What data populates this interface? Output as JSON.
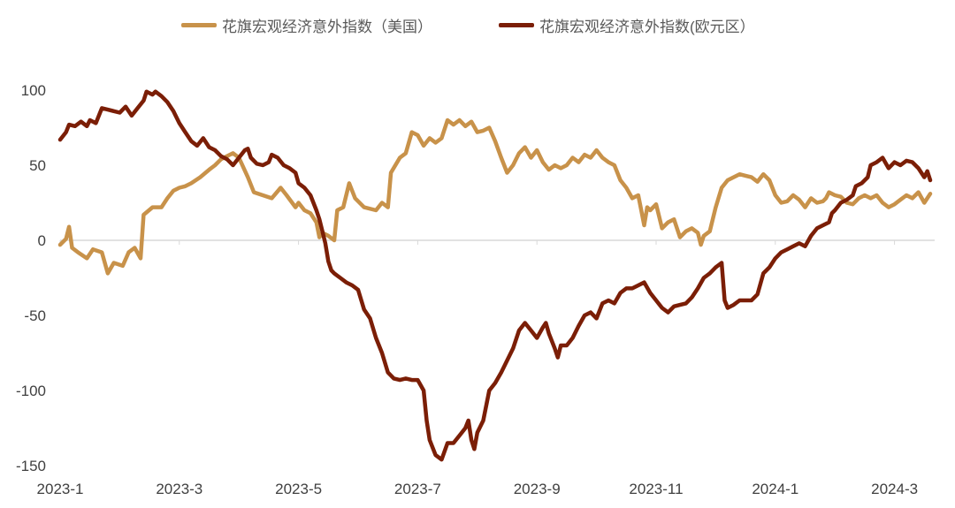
{
  "chart_data": {
    "type": "line",
    "title": "",
    "xlabel": "",
    "ylabel": "",
    "ylim": [
      -150,
      110
    ],
    "yticks": [
      100,
      50,
      0,
      -50,
      -100,
      -150
    ],
    "xlim": [
      0,
      14.6
    ],
    "xtick_positions": [
      0,
      2,
      4,
      6,
      8,
      10,
      12,
      14
    ],
    "xtick_labels": [
      "2023-1",
      "2023-3",
      "2023-5",
      "2023-7",
      "2023-9",
      "2023-11",
      "2024-1",
      "2024-3"
    ],
    "legend_position": "top",
    "series": [
      {
        "name": "花旗宏观经济意外指数（美国）",
        "color": "#C8924A",
        "points": [
          [
            0.0,
            -3
          ],
          [
            0.1,
            1
          ],
          [
            0.15,
            9
          ],
          [
            0.2,
            -5
          ],
          [
            0.3,
            -8
          ],
          [
            0.45,
            -12
          ],
          [
            0.55,
            -6
          ],
          [
            0.7,
            -8
          ],
          [
            0.8,
            -22
          ],
          [
            0.9,
            -15
          ],
          [
            1.05,
            -17
          ],
          [
            1.15,
            -8
          ],
          [
            1.25,
            -5
          ],
          [
            1.35,
            -12
          ],
          [
            1.4,
            17
          ],
          [
            1.55,
            22
          ],
          [
            1.7,
            22
          ],
          [
            1.8,
            28
          ],
          [
            1.9,
            33
          ],
          [
            2.0,
            35
          ],
          [
            2.1,
            36
          ],
          [
            2.2,
            38
          ],
          [
            2.35,
            42
          ],
          [
            2.5,
            47
          ],
          [
            2.6,
            50
          ],
          [
            2.7,
            54
          ],
          [
            2.8,
            56
          ],
          [
            2.9,
            58
          ],
          [
            3.0,
            55
          ],
          [
            3.15,
            42
          ],
          [
            3.25,
            32
          ],
          [
            3.4,
            30
          ],
          [
            3.55,
            28
          ],
          [
            3.7,
            35
          ],
          [
            3.8,
            30
          ],
          [
            3.95,
            22
          ],
          [
            4.0,
            25
          ],
          [
            4.1,
            20
          ],
          [
            4.2,
            18
          ],
          [
            4.3,
            12
          ],
          [
            4.35,
            2
          ],
          [
            4.4,
            5
          ],
          [
            4.5,
            3
          ],
          [
            4.6,
            0
          ],
          [
            4.65,
            20
          ],
          [
            4.75,
            22
          ],
          [
            4.85,
            38
          ],
          [
            4.95,
            28
          ],
          [
            5.1,
            22
          ],
          [
            5.3,
            20
          ],
          [
            5.4,
            25
          ],
          [
            5.5,
            22
          ],
          [
            5.55,
            45
          ],
          [
            5.7,
            55
          ],
          [
            5.8,
            58
          ],
          [
            5.9,
            72
          ],
          [
            6.0,
            70
          ],
          [
            6.1,
            63
          ],
          [
            6.2,
            68
          ],
          [
            6.3,
            65
          ],
          [
            6.4,
            68
          ],
          [
            6.5,
            80
          ],
          [
            6.6,
            77
          ],
          [
            6.7,
            80
          ],
          [
            6.8,
            76
          ],
          [
            6.9,
            79
          ],
          [
            7.0,
            72
          ],
          [
            7.1,
            73
          ],
          [
            7.2,
            75
          ],
          [
            7.3,
            66
          ],
          [
            7.4,
            55
          ],
          [
            7.5,
            45
          ],
          [
            7.6,
            50
          ],
          [
            7.7,
            58
          ],
          [
            7.8,
            62
          ],
          [
            7.9,
            55
          ],
          [
            8.0,
            60
          ],
          [
            8.1,
            52
          ],
          [
            8.2,
            47
          ],
          [
            8.3,
            50
          ],
          [
            8.4,
            48
          ],
          [
            8.5,
            50
          ],
          [
            8.6,
            55
          ],
          [
            8.7,
            52
          ],
          [
            8.8,
            57
          ],
          [
            8.9,
            55
          ],
          [
            9.0,
            60
          ],
          [
            9.1,
            55
          ],
          [
            9.2,
            52
          ],
          [
            9.3,
            50
          ],
          [
            9.4,
            40
          ],
          [
            9.5,
            35
          ],
          [
            9.6,
            28
          ],
          [
            9.7,
            30
          ],
          [
            9.75,
            20
          ],
          [
            9.8,
            10
          ],
          [
            9.85,
            22
          ],
          [
            9.9,
            20
          ],
          [
            10.0,
            24
          ],
          [
            10.1,
            8
          ],
          [
            10.2,
            12
          ],
          [
            10.3,
            14
          ],
          [
            10.4,
            2
          ],
          [
            10.5,
            6
          ],
          [
            10.6,
            8
          ],
          [
            10.7,
            5
          ],
          [
            10.75,
            -3
          ],
          [
            10.8,
            3
          ],
          [
            10.9,
            6
          ],
          [
            11.0,
            22
          ],
          [
            11.1,
            35
          ],
          [
            11.2,
            40
          ],
          [
            11.3,
            42
          ],
          [
            11.4,
            44
          ],
          [
            11.5,
            43
          ],
          [
            11.6,
            42
          ],
          [
            11.7,
            39
          ],
          [
            11.8,
            44
          ],
          [
            11.9,
            40
          ],
          [
            12.0,
            30
          ],
          [
            12.1,
            25
          ],
          [
            12.2,
            26
          ],
          [
            12.3,
            30
          ],
          [
            12.4,
            27
          ],
          [
            12.5,
            22
          ],
          [
            12.6,
            28
          ],
          [
            12.7,
            25
          ],
          [
            12.8,
            26
          ],
          [
            12.85,
            28
          ],
          [
            12.9,
            32
          ],
          [
            13.0,
            30
          ],
          [
            13.1,
            29
          ],
          [
            13.2,
            25
          ],
          [
            13.3,
            24
          ],
          [
            13.4,
            28
          ],
          [
            13.5,
            30
          ],
          [
            13.6,
            28
          ],
          [
            13.7,
            30
          ],
          [
            13.8,
            25
          ],
          [
            13.9,
            22
          ],
          [
            14.0,
            24
          ],
          [
            14.1,
            27
          ],
          [
            14.2,
            30
          ],
          [
            14.3,
            28
          ],
          [
            14.4,
            32
          ],
          [
            14.5,
            25
          ],
          [
            14.6,
            31
          ]
        ]
      },
      {
        "name": "花旗宏观经济意外指数(欧元区）",
        "color": "#7B1E06",
        "points": [
          [
            0.0,
            67
          ],
          [
            0.1,
            72
          ],
          [
            0.15,
            77
          ],
          [
            0.25,
            76
          ],
          [
            0.35,
            79
          ],
          [
            0.45,
            76
          ],
          [
            0.5,
            80
          ],
          [
            0.6,
            78
          ],
          [
            0.7,
            88
          ],
          [
            0.8,
            87
          ],
          [
            0.9,
            86
          ],
          [
            1.0,
            85
          ],
          [
            1.1,
            89
          ],
          [
            1.2,
            83
          ],
          [
            1.3,
            88
          ],
          [
            1.4,
            93
          ],
          [
            1.45,
            99
          ],
          [
            1.55,
            97
          ],
          [
            1.6,
            99
          ],
          [
            1.7,
            96
          ],
          [
            1.8,
            92
          ],
          [
            1.9,
            86
          ],
          [
            2.0,
            78
          ],
          [
            2.1,
            72
          ],
          [
            2.2,
            66
          ],
          [
            2.3,
            63
          ],
          [
            2.4,
            68
          ],
          [
            2.5,
            62
          ],
          [
            2.6,
            60
          ],
          [
            2.7,
            56
          ],
          [
            2.8,
            54
          ],
          [
            2.9,
            50
          ],
          [
            3.0,
            55
          ],
          [
            3.1,
            60
          ],
          [
            3.15,
            61
          ],
          [
            3.2,
            55
          ],
          [
            3.3,
            51
          ],
          [
            3.4,
            50
          ],
          [
            3.5,
            52
          ],
          [
            3.55,
            57
          ],
          [
            3.65,
            55
          ],
          [
            3.75,
            50
          ],
          [
            3.85,
            48
          ],
          [
            3.95,
            45
          ],
          [
            4.0,
            38
          ],
          [
            4.1,
            35
          ],
          [
            4.2,
            30
          ],
          [
            4.3,
            20
          ],
          [
            4.35,
            14
          ],
          [
            4.4,
            6
          ],
          [
            4.45,
            -2
          ],
          [
            4.5,
            -14
          ],
          [
            4.55,
            -20
          ],
          [
            4.6,
            -22
          ],
          [
            4.7,
            -25
          ],
          [
            4.8,
            -28
          ],
          [
            4.9,
            -30
          ],
          [
            5.0,
            -33
          ],
          [
            5.1,
            -46
          ],
          [
            5.2,
            -52
          ],
          [
            5.3,
            -65
          ],
          [
            5.4,
            -75
          ],
          [
            5.5,
            -88
          ],
          [
            5.6,
            -92
          ],
          [
            5.7,
            -93
          ],
          [
            5.8,
            -92
          ],
          [
            5.9,
            -93
          ],
          [
            6.0,
            -93
          ],
          [
            6.1,
            -100
          ],
          [
            6.15,
            -120
          ],
          [
            6.2,
            -133
          ],
          [
            6.3,
            -143
          ],
          [
            6.4,
            -146
          ],
          [
            6.5,
            -135
          ],
          [
            6.6,
            -135
          ],
          [
            6.7,
            -130
          ],
          [
            6.8,
            -125
          ],
          [
            6.85,
            -120
          ],
          [
            6.9,
            -133
          ],
          [
            6.95,
            -139
          ],
          [
            7.0,
            -128
          ],
          [
            7.1,
            -120
          ],
          [
            7.2,
            -100
          ],
          [
            7.3,
            -95
          ],
          [
            7.4,
            -88
          ],
          [
            7.5,
            -80
          ],
          [
            7.6,
            -72
          ],
          [
            7.7,
            -60
          ],
          [
            7.8,
            -55
          ],
          [
            7.9,
            -60
          ],
          [
            8.0,
            -65
          ],
          [
            8.1,
            -58
          ],
          [
            8.15,
            -55
          ],
          [
            8.2,
            -62
          ],
          [
            8.3,
            -72
          ],
          [
            8.35,
            -78
          ],
          [
            8.4,
            -70
          ],
          [
            8.5,
            -70
          ],
          [
            8.6,
            -65
          ],
          [
            8.7,
            -57
          ],
          [
            8.8,
            -50
          ],
          [
            8.9,
            -48
          ],
          [
            9.0,
            -52
          ],
          [
            9.1,
            -42
          ],
          [
            9.2,
            -40
          ],
          [
            9.3,
            -42
          ],
          [
            9.4,
            -35
          ],
          [
            9.5,
            -32
          ],
          [
            9.6,
            -32
          ],
          [
            9.7,
            -30
          ],
          [
            9.8,
            -28
          ],
          [
            9.9,
            -35
          ],
          [
            10.0,
            -40
          ],
          [
            10.1,
            -45
          ],
          [
            10.2,
            -48
          ],
          [
            10.3,
            -44
          ],
          [
            10.4,
            -43
          ],
          [
            10.5,
            -42
          ],
          [
            10.6,
            -38
          ],
          [
            10.7,
            -32
          ],
          [
            10.8,
            -25
          ],
          [
            10.9,
            -22
          ],
          [
            11.0,
            -18
          ],
          [
            11.1,
            -15
          ],
          [
            11.15,
            -40
          ],
          [
            11.2,
            -45
          ],
          [
            11.3,
            -43
          ],
          [
            11.4,
            -40
          ],
          [
            11.5,
            -40
          ],
          [
            11.6,
            -40
          ],
          [
            11.7,
            -36
          ],
          [
            11.8,
            -22
          ],
          [
            11.9,
            -18
          ],
          [
            12.0,
            -12
          ],
          [
            12.1,
            -8
          ],
          [
            12.2,
            -6
          ],
          [
            12.3,
            -4
          ],
          [
            12.4,
            -2
          ],
          [
            12.5,
            -4
          ],
          [
            12.6,
            3
          ],
          [
            12.7,
            8
          ],
          [
            12.8,
            10
          ],
          [
            12.9,
            12
          ],
          [
            12.95,
            18
          ],
          [
            13.0,
            20
          ],
          [
            13.1,
            25
          ],
          [
            13.2,
            27
          ],
          [
            13.3,
            30
          ],
          [
            13.35,
            36
          ],
          [
            13.45,
            38
          ],
          [
            13.55,
            42
          ],
          [
            13.6,
            50
          ],
          [
            13.7,
            52
          ],
          [
            13.8,
            55
          ],
          [
            13.9,
            48
          ],
          [
            14.0,
            52
          ],
          [
            14.1,
            50
          ],
          [
            14.2,
            53
          ],
          [
            14.3,
            52
          ],
          [
            14.4,
            48
          ],
          [
            14.5,
            42
          ],
          [
            14.55,
            46
          ],
          [
            14.6,
            40
          ]
        ]
      }
    ]
  }
}
